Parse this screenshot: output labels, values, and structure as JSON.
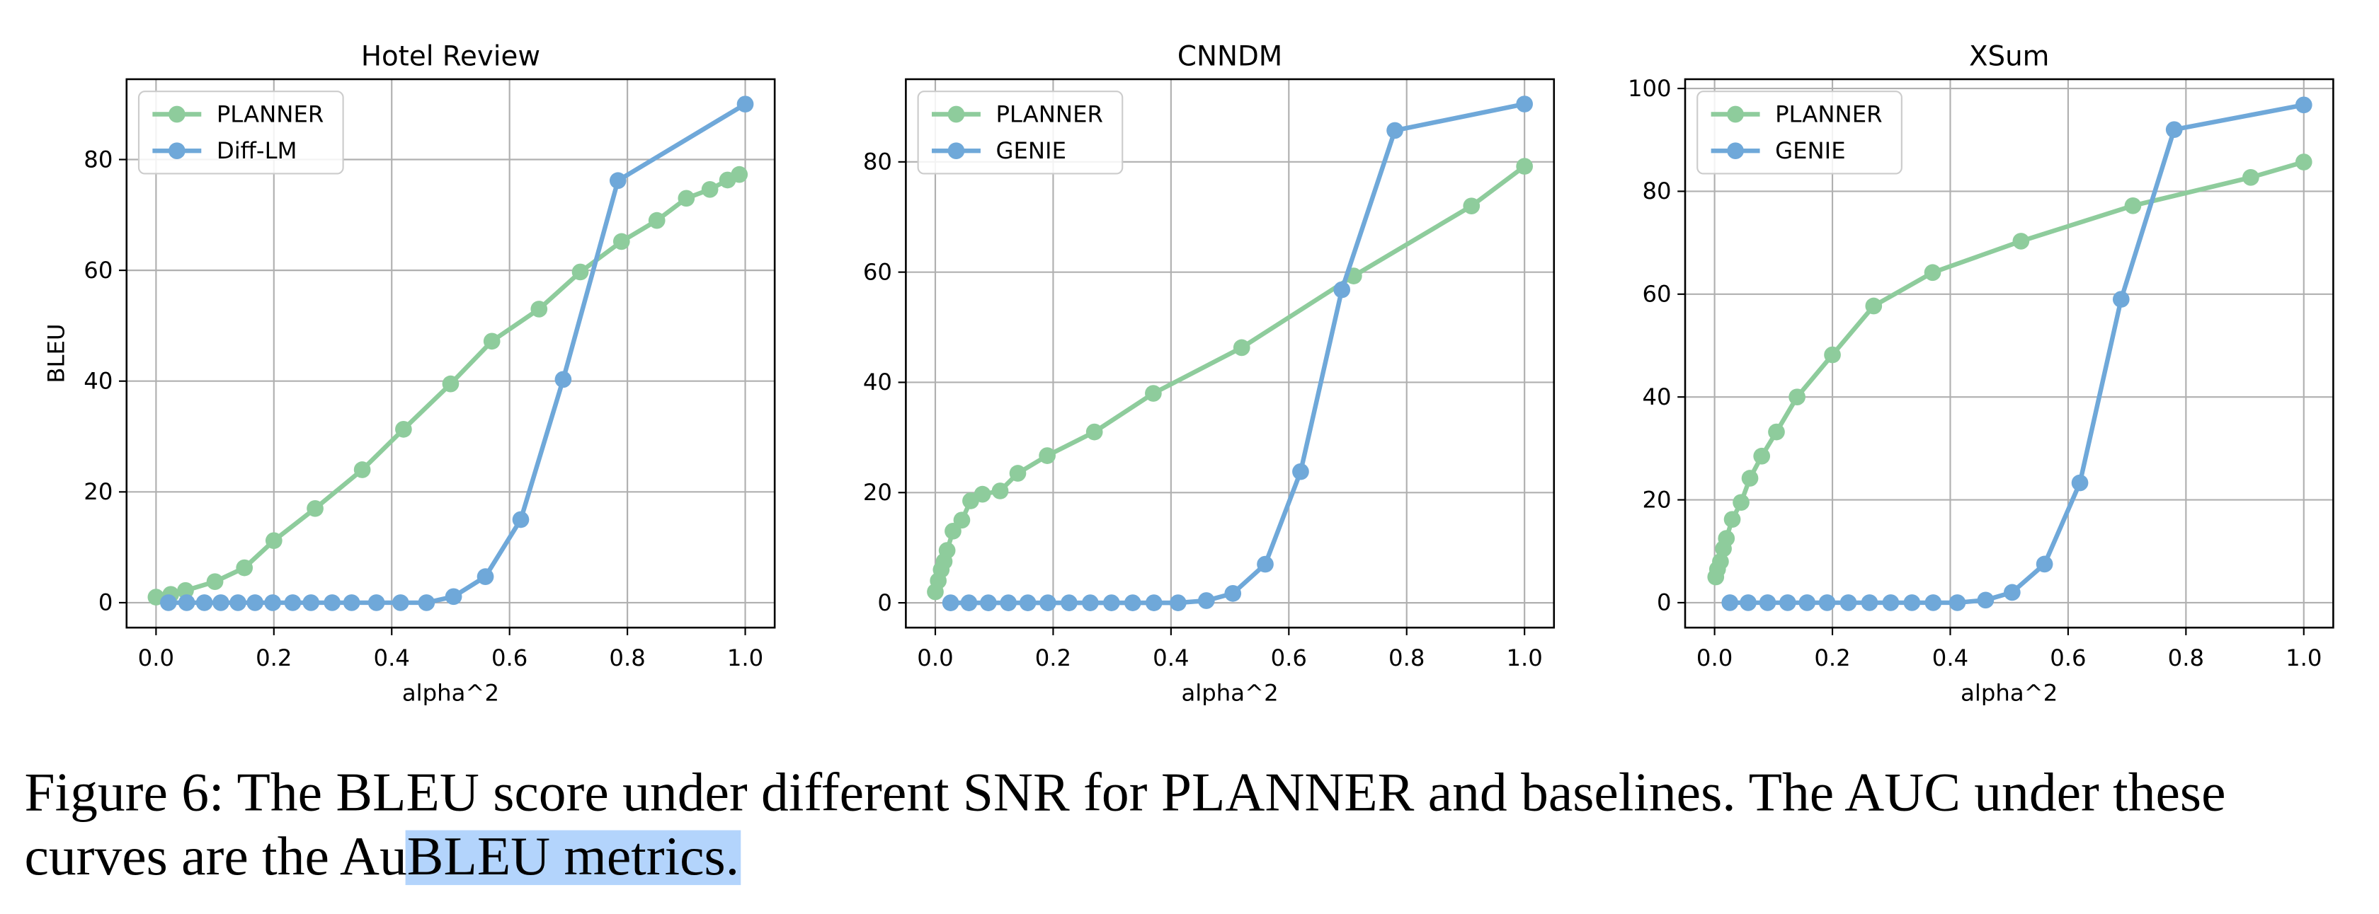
{
  "chart_data": [
    {
      "type": "line",
      "title": "Hotel Review",
      "xlabel": "alpha^2",
      "ylabel": "BLEU",
      "xlim": [
        -0.05,
        1.05
      ],
      "ylim": [
        -4.5,
        94.5
      ],
      "xticks": [
        {
          "value": 0,
          "label": "0.0"
        },
        0.2,
        0.4,
        0.6,
        0.8,
        {
          "value": 1,
          "label": "1.0"
        }
      ],
      "yticks": [
        0,
        20,
        40,
        60,
        80
      ],
      "grid": true,
      "legend": "upper-left",
      "series": [
        {
          "name": "PLANNER",
          "color": "#8ecc9c",
          "x": [
            0,
            0.025,
            0.05,
            0.1,
            0.15,
            0.2,
            0.27,
            0.35,
            0.42,
            0.5,
            0.57,
            0.65,
            0.72,
            0.79,
            0.85,
            0.9,
            0.94,
            0.97,
            0.99
          ],
          "values": [
            1,
            1.5,
            2.2,
            3.8,
            6.3,
            11.2,
            17,
            24,
            31.3,
            39.5,
            47.2,
            53,
            59.7,
            65.2,
            69,
            73,
            74.6,
            76.3,
            77.3
          ]
        },
        {
          "name": "Diff-LM",
          "color": "#6fa8d9",
          "x": [
            0.021,
            0.052,
            0.082,
            0.11,
            0.139,
            0.168,
            0.198,
            0.232,
            0.263,
            0.299,
            0.332,
            0.374,
            0.415,
            0.459,
            0.505,
            0.559,
            0.619,
            0.691,
            0.784,
            1.0
          ],
          "values": [
            0,
            0,
            0,
            0,
            0,
            0,
            0,
            0,
            0,
            0,
            0,
            0,
            0,
            0,
            1.1,
            4.7,
            15,
            40.3,
            76.2,
            90
          ]
        }
      ]
    },
    {
      "type": "line",
      "title": "CNNDM",
      "xlabel": "alpha^2",
      "xlim": [
        -0.05,
        1.05
      ],
      "ylim": [
        -4.5,
        95
      ],
      "xticks": [
        {
          "value": 0,
          "label": "0.0"
        },
        0.2,
        0.4,
        0.6,
        0.8,
        {
          "value": 1,
          "label": "1.0"
        }
      ],
      "yticks": [
        0,
        20,
        40,
        60,
        80
      ],
      "grid": true,
      "legend": "upper-left",
      "series": [
        {
          "name": "PLANNER",
          "color": "#8ecc9c",
          "x": [
            0,
            0.005,
            0.01,
            0.015,
            0.02,
            0.03,
            0.045,
            0.06,
            0.08,
            0.11,
            0.14,
            0.19,
            0.27,
            0.37,
            0.52,
            0.71,
            0.91,
            1.0
          ],
          "values": [
            2,
            4,
            6,
            7.5,
            9.5,
            13,
            15,
            18.5,
            19.7,
            20.3,
            23.5,
            26.7,
            31,
            38,
            46.3,
            59.3,
            72,
            79.2
          ]
        },
        {
          "name": "GENIE",
          "color": "#6fa8d9",
          "x": [
            0.026,
            0.057,
            0.09,
            0.124,
            0.157,
            0.191,
            0.227,
            0.263,
            0.299,
            0.335,
            0.371,
            0.412,
            0.46,
            0.505,
            0.56,
            0.62,
            0.69,
            0.78,
            1.0
          ],
          "values": [
            0,
            0,
            0,
            0,
            0,
            0,
            0,
            0,
            0,
            0,
            0,
            0,
            0.4,
            1.7,
            7,
            23.8,
            56.8,
            85.7,
            90.5
          ]
        }
      ]
    },
    {
      "type": "line",
      "title": "XSum",
      "xlabel": "alpha^2",
      "xlim": [
        -0.05,
        1.05
      ],
      "ylim": [
        -4.85,
        101.8
      ],
      "xticks": [
        {
          "value": 0,
          "label": "0.0"
        },
        0.2,
        0.4,
        0.6,
        0.8,
        {
          "value": 1,
          "label": "1.0"
        }
      ],
      "yticks": [
        0,
        20,
        40,
        60,
        80,
        100
      ],
      "grid": true,
      "legend": "upper-left",
      "series": [
        {
          "name": "PLANNER",
          "color": "#8ecc9c",
          "x": [
            0.002,
            0.005,
            0.01,
            0.015,
            0.02,
            0.03,
            0.045,
            0.06,
            0.08,
            0.105,
            0.14,
            0.2,
            0.27,
            0.37,
            0.52,
            0.71,
            0.91,
            1.0
          ],
          "values": [
            5,
            6.5,
            8,
            10.5,
            12.5,
            16.2,
            19.5,
            24.2,
            28.5,
            33.2,
            40,
            48.2,
            57.7,
            64.2,
            70.3,
            77.2,
            82.7,
            85.7
          ]
        },
        {
          "name": "GENIE",
          "color": "#6fa8d9",
          "x": [
            0.026,
            0.057,
            0.09,
            0.124,
            0.157,
            0.191,
            0.227,
            0.263,
            0.299,
            0.335,
            0.371,
            0.412,
            0.46,
            0.505,
            0.56,
            0.62,
            0.69,
            0.78,
            1.0
          ],
          "values": [
            0,
            0,
            0,
            0,
            0,
            0,
            0,
            0,
            0,
            0,
            0,
            0,
            0.5,
            2,
            7.5,
            23.3,
            59,
            92,
            96.8
          ]
        }
      ]
    }
  ],
  "caption": [
    "Figure 6: The BLEU score under different SNR for PLANNER and baselines. The AUC under these",
    "curves are the Au",
    "BLEU metrics."
  ]
}
